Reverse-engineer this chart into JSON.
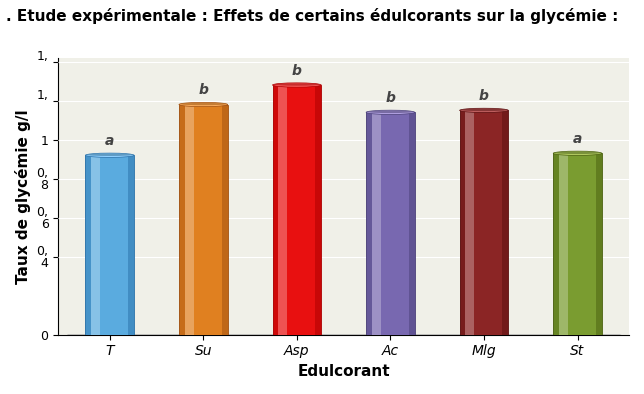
{
  "title": ". Etude expérimentale : Effets de certains édulcorants sur la glycémie :",
  "categories": [
    "T",
    "Su",
    "Asp",
    "Ac",
    "Mlg",
    "St"
  ],
  "values": [
    0.92,
    1.18,
    1.28,
    1.14,
    1.15,
    0.93
  ],
  "labels": [
    "a",
    "b",
    "b",
    "b",
    "b",
    "a"
  ],
  "bar_colors": [
    "#5aabdf",
    "#e08020",
    "#e81010",
    "#7868b0",
    "#8b2525",
    "#7a9c30"
  ],
  "bar_dark_colors": [
    "#2a70a8",
    "#a05010",
    "#aa0000",
    "#4a4078",
    "#5a1010",
    "#4a6010"
  ],
  "bar_light_colors": [
    "#90d0ff",
    "#ffb060",
    "#ff6060",
    "#b0a0e0",
    "#c06060",
    "#b0c860"
  ],
  "xlabel": "Edulcorant",
  "ylabel": "Taux de glycémie g/l",
  "ylim": [
    0,
    1.42
  ],
  "background_color": "#ffffff",
  "plot_bg_color": "#f0f0e8",
  "title_fontsize": 11,
  "axis_label_fontsize": 11,
  "tick_fontsize": 9
}
